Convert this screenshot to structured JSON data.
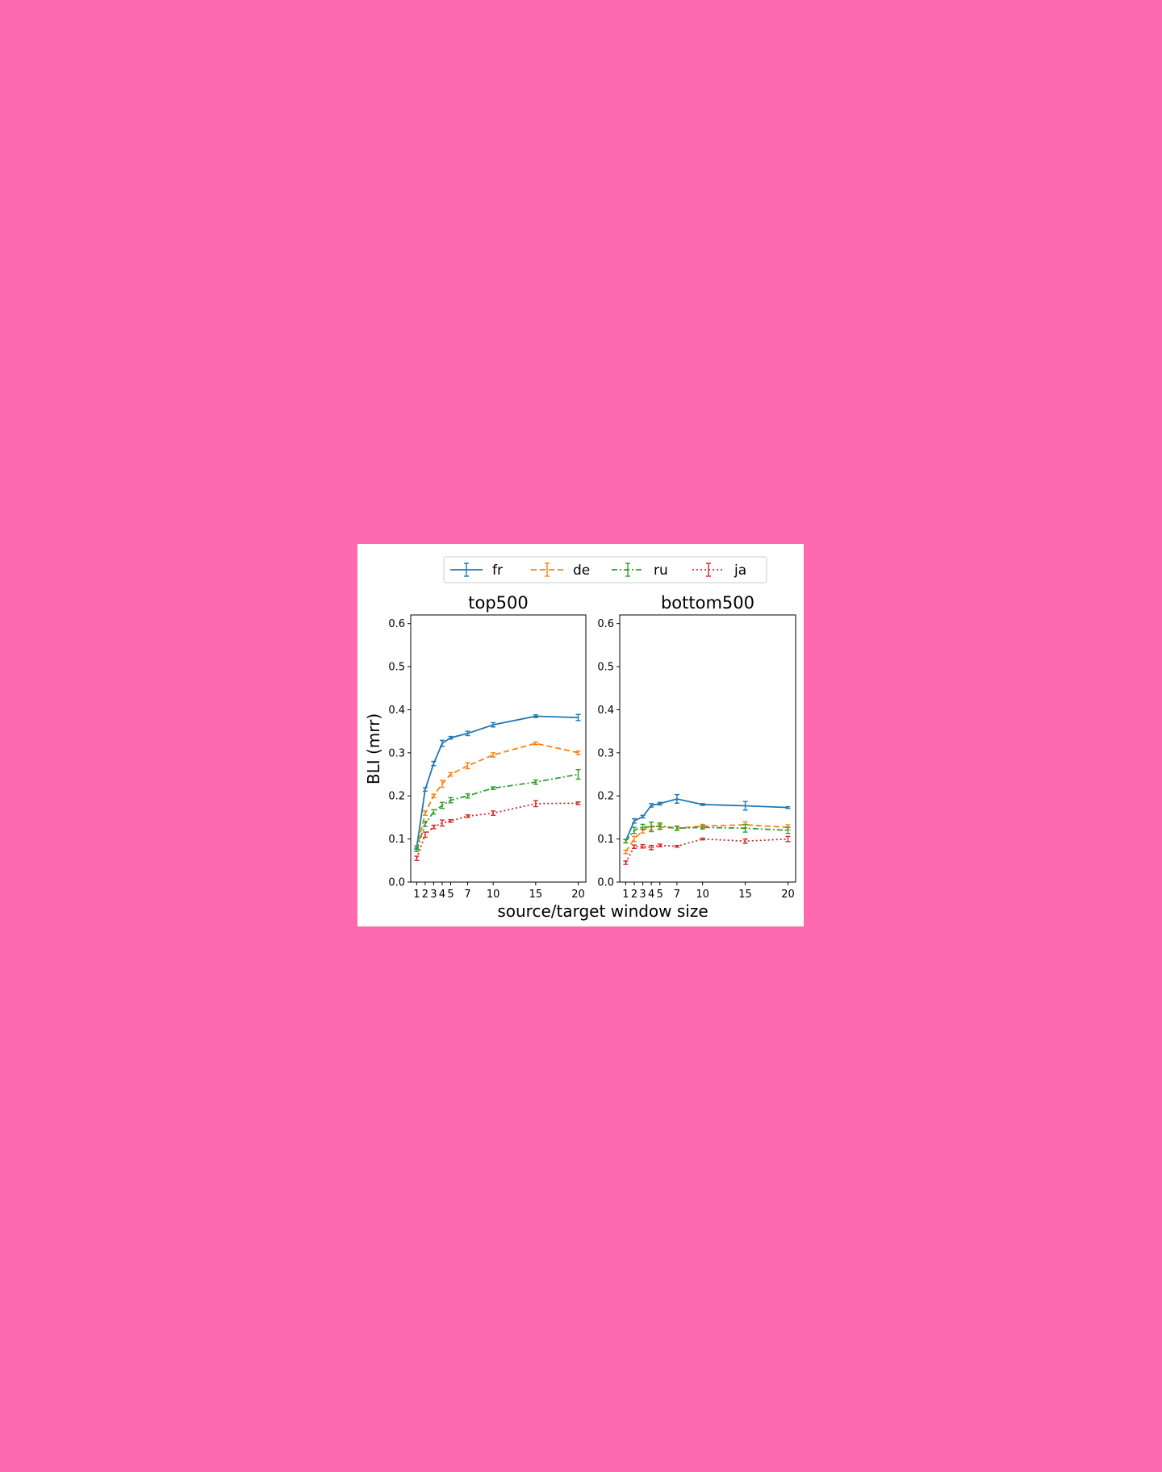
{
  "chart_data": {
    "type": "line",
    "ylabel": "BLI (mrr)",
    "xlabel": "source/target window size",
    "x": [
      1,
      2,
      3,
      4,
      5,
      7,
      10,
      15,
      20
    ],
    "xticks": [
      1,
      2,
      3,
      4,
      5,
      7,
      10,
      15,
      20
    ],
    "xtick_labels": [
      "1",
      "2",
      "3",
      "4",
      "5",
      "7",
      "10",
      "15",
      "20"
    ],
    "xlim": [
      0.3,
      20.9
    ],
    "ylim": [
      0.0,
      0.62
    ],
    "yticks": [
      0.0,
      0.1,
      0.2,
      0.3,
      0.4,
      0.5,
      0.6
    ],
    "ytick_labels": [
      "0.0",
      "0.1",
      "0.2",
      "0.3",
      "0.4",
      "0.5",
      "0.6"
    ],
    "grid": false,
    "legend_position": "top-center",
    "legend": [
      {
        "name": "fr",
        "color": "#1f77b4",
        "dash": "solid"
      },
      {
        "name": "de",
        "color": "#ff7f0e",
        "dash": "dashed"
      },
      {
        "name": "ru",
        "color": "#2ca02c",
        "dash": "dashdot"
      },
      {
        "name": "ja",
        "color": "#d62728",
        "dash": "dotted"
      }
    ],
    "panels": [
      {
        "title": "top500",
        "series": [
          {
            "name": "fr",
            "values": [
              0.08,
              0.215,
              0.275,
              0.322,
              0.335,
              0.345,
              0.365,
              0.385,
              0.382
            ],
            "errors": [
              0.004,
              0.004,
              0.005,
              0.007,
              0.003,
              0.005,
              0.005,
              0.003,
              0.007
            ]
          },
          {
            "name": "de",
            "values": [
              0.075,
              0.16,
              0.2,
              0.228,
              0.25,
              0.27,
              0.295,
              0.322,
              0.3
            ],
            "errors": [
              0.004,
              0.005,
              0.004,
              0.008,
              0.004,
              0.007,
              0.005,
              0.003,
              0.004
            ]
          },
          {
            "name": "ru",
            "values": [
              0.075,
              0.135,
              0.163,
              0.178,
              0.19,
              0.2,
              0.218,
              0.232,
              0.25
            ],
            "errors": [
              0.004,
              0.006,
              0.005,
              0.007,
              0.006,
              0.005,
              0.003,
              0.005,
              0.011
            ]
          },
          {
            "name": "ja",
            "values": [
              0.055,
              0.11,
              0.128,
              0.137,
              0.142,
              0.153,
              0.16,
              0.182,
              0.183
            ],
            "errors": [
              0.005,
              0.006,
              0.004,
              0.007,
              0.003,
              0.003,
              0.005,
              0.007,
              0.003
            ]
          }
        ]
      },
      {
        "title": "bottom500",
        "series": [
          {
            "name": "fr",
            "values": [
              0.095,
              0.142,
              0.152,
              0.178,
              0.182,
              0.193,
              0.18,
              0.177,
              0.173
            ],
            "errors": [
              0.004,
              0.005,
              0.003,
              0.004,
              0.003,
              0.01,
              0.002,
              0.01,
              0.002
            ]
          },
          {
            "name": "de",
            "values": [
              0.07,
              0.1,
              0.12,
              0.13,
              0.128,
              0.125,
              0.13,
              0.133,
              0.127
            ],
            "errors": [
              0.004,
              0.006,
              0.006,
              0.009,
              0.006,
              0.004,
              0.004,
              0.007,
              0.006
            ]
          },
          {
            "name": "ru",
            "values": [
              0.095,
              0.12,
              0.128,
              0.128,
              0.13,
              0.125,
              0.127,
              0.125,
              0.12
            ],
            "errors": [
              0.004,
              0.007,
              0.006,
              0.011,
              0.007,
              0.005,
              0.004,
              0.009,
              0.007
            ]
          },
          {
            "name": "ja",
            "values": [
              0.045,
              0.082,
              0.083,
              0.08,
              0.085,
              0.083,
              0.1,
              0.095,
              0.1
            ],
            "errors": [
              0.004,
              0.004,
              0.004,
              0.005,
              0.003,
              0.002,
              0.002,
              0.005,
              0.006
            ]
          }
        ]
      }
    ]
  }
}
